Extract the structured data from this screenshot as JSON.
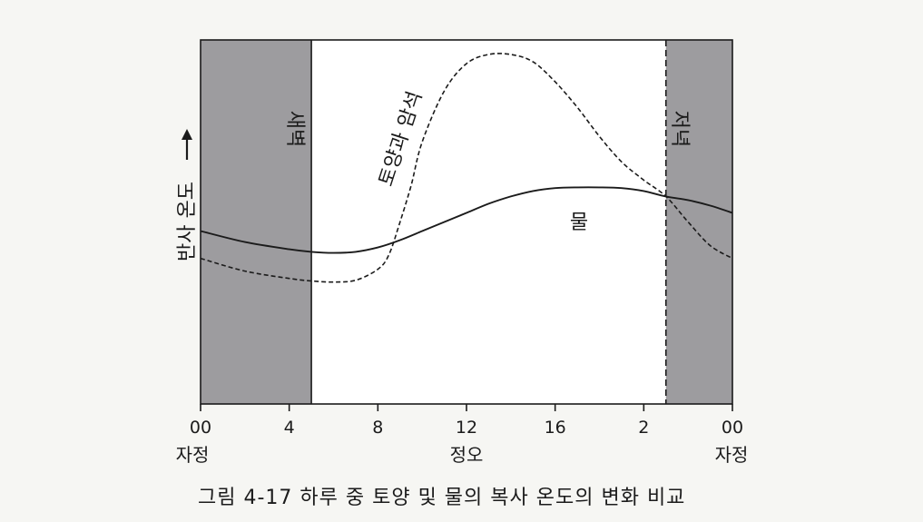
{
  "chart_data": {
    "type": "line",
    "caption": "그림 4-17  하루 중 토양 및 물의 복사 온도의 변화 비교",
    "ylabel": "반사  온도",
    "x_ticks": [
      "00",
      "4",
      "8",
      "12",
      "16",
      "2",
      "00"
    ],
    "x_sublabels": {
      "left": "자정",
      "center": "정오",
      "right": "자정"
    },
    "x_range_hours": [
      0,
      24
    ],
    "shaded_regions": [
      {
        "label": "새벽",
        "start_hour": 0,
        "end_hour": 5
      },
      {
        "label": "저녁",
        "start_hour": 21,
        "end_hour": 24
      }
    ],
    "y_values_note": "relative temperature scale, 0 = bottom, 100 = top",
    "ylim": [
      0,
      100
    ],
    "series": [
      {
        "name": "물",
        "style": "solid",
        "x": [
          0,
          2,
          4,
          5,
          6,
          7,
          8,
          9,
          10,
          11,
          12,
          13,
          14,
          15,
          16,
          17,
          18,
          19,
          20,
          21,
          22,
          23,
          24
        ],
        "y": [
          47.5,
          44.5,
          42.5,
          41.8,
          41.5,
          41.8,
          43.0,
          45.0,
          47.5,
          50.0,
          52.5,
          55.0,
          57.0,
          58.5,
          59.3,
          59.5,
          59.5,
          59.3,
          58.5,
          57.0,
          56.0,
          54.5,
          52.5
        ]
      },
      {
        "name": "토양과 암석",
        "style": "dashed",
        "x": [
          0,
          2,
          4,
          5,
          6,
          7,
          8,
          8.5,
          9,
          9.5,
          10,
          11,
          12,
          13,
          14,
          15,
          16,
          17,
          18,
          19,
          20,
          21,
          22,
          23,
          24
        ],
        "y": [
          40.0,
          36.5,
          34.5,
          33.8,
          33.5,
          34.0,
          37.0,
          41.0,
          50.0,
          60.0,
          72.0,
          86.0,
          93.5,
          96.0,
          96.0,
          94.0,
          88.5,
          81.5,
          73.5,
          66.5,
          61.5,
          57.0,
          50.0,
          43.5,
          40.0
        ]
      }
    ],
    "series_labels": {
      "solid": "물",
      "dashed": "토양과 암석"
    }
  }
}
